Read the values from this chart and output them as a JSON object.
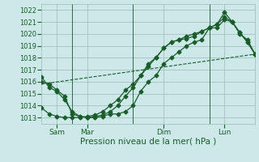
{
  "xlabel": "Pression niveau de la mer( hPa )",
  "bg_color": "#cce8e8",
  "grid_color": "#99bbbb",
  "line_color": "#1a5c2a",
  "xlim": [
    0,
    84
  ],
  "ylim": [
    1012.5,
    1022.5
  ],
  "yticks": [
    1013,
    1014,
    1015,
    1016,
    1017,
    1018,
    1019,
    1020,
    1021,
    1022
  ],
  "xtick_positions": [
    6,
    18,
    48,
    72
  ],
  "xtick_labels": [
    "Sam",
    "Mar",
    "Dim",
    "Lun"
  ],
  "vline_positions": [
    12,
    36,
    66
  ],
  "series1_x": [
    0,
    3,
    6,
    9,
    12,
    15,
    18,
    21,
    24,
    27,
    30,
    33,
    36,
    39,
    42,
    45,
    48,
    51,
    54,
    57,
    60,
    63,
    66,
    69,
    72,
    75,
    78,
    81,
    84
  ],
  "series1_y": [
    1016.4,
    1015.5,
    1015.2,
    1014.5,
    1013.5,
    1013.1,
    1013.0,
    1013.0,
    1013.1,
    1013.3,
    1013.3,
    1013.5,
    1014.0,
    1015.2,
    1016.0,
    1016.5,
    1017.5,
    1018.0,
    1018.5,
    1019.0,
    1019.3,
    1019.5,
    1020.5,
    1020.8,
    1021.8,
    1021.0,
    1020.0,
    1019.5,
    1018.3
  ],
  "series2_x": [
    0,
    3,
    6,
    9,
    12,
    15,
    18,
    21,
    24,
    27,
    30,
    33,
    36,
    39,
    42,
    45,
    48,
    51,
    54,
    57,
    60,
    63,
    66,
    69,
    72,
    75,
    78,
    81,
    84
  ],
  "series2_y": [
    1016.0,
    1015.8,
    1015.3,
    1014.8,
    1013.3,
    1013.1,
    1013.0,
    1013.1,
    1013.2,
    1013.5,
    1014.0,
    1014.8,
    1015.5,
    1016.5,
    1017.5,
    1018.0,
    1018.8,
    1019.3,
    1019.5,
    1019.6,
    1019.8,
    1020.2,
    1020.5,
    1020.5,
    1021.2,
    1021.0,
    1020.1,
    1019.3,
    1018.3
  ],
  "series3_x": [
    0,
    84
  ],
  "series3_y": [
    1015.8,
    1018.3
  ],
  "series4_x": [
    0,
    3,
    6,
    9,
    12,
    15,
    18,
    21,
    24,
    27,
    30,
    33,
    36,
    39,
    42,
    45,
    48,
    51,
    54,
    57,
    60,
    63,
    66,
    69,
    72,
    75,
    78,
    81,
    84
  ],
  "series4_y": [
    1013.8,
    1013.3,
    1013.1,
    1013.0,
    1013.0,
    1013.0,
    1013.1,
    1013.2,
    1013.5,
    1014.0,
    1014.5,
    1015.3,
    1015.8,
    1016.5,
    1017.3,
    1018.0,
    1018.8,
    1019.3,
    1019.5,
    1019.8,
    1020.0,
    1020.2,
    1020.5,
    1020.8,
    1021.4,
    1021.0,
    1020.1,
    1019.3,
    1018.3
  ]
}
